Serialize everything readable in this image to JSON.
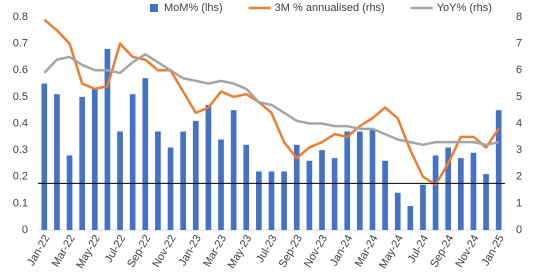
{
  "chart_data": {
    "type": "bar-line",
    "categories": [
      "Jan-22",
      null,
      "Mar-22",
      null,
      "May-22",
      null,
      "Jul-22",
      null,
      "Sep-22",
      null,
      "Nov-22",
      null,
      "Jan-23",
      null,
      "Mar-23",
      null,
      "May-23",
      null,
      "Jul-23",
      null,
      "Sep-23",
      null,
      "Nov-23",
      null,
      "Jan-24",
      null,
      "Mar-24",
      null,
      "May-24",
      null,
      "Jul-24",
      null,
      "Sep-24",
      null,
      "Nov-24",
      null,
      "Jan-25"
    ],
    "series": [
      {
        "name": "MoM% (lhs)",
        "type": "bar",
        "axis": "y",
        "color": "#4472c4",
        "values": [
          0.55,
          0.51,
          0.28,
          0.5,
          0.53,
          0.68,
          0.37,
          0.51,
          0.57,
          0.37,
          0.31,
          0.37,
          0.41,
          0.47,
          0.34,
          0.45,
          0.32,
          0.22,
          0.22,
          0.22,
          0.32,
          0.26,
          0.3,
          0.27,
          0.37,
          0.37,
          0.38,
          0.26,
          0.14,
          0.09,
          0.17,
          0.28,
          0.31,
          0.27,
          0.29,
          0.21,
          0.45
        ]
      },
      {
        "name": "3M % annualised (rhs)",
        "type": "line",
        "axis": "y2",
        "color": "#ed7d31",
        "values": [
          7.9,
          7.5,
          7.0,
          5.5,
          5.3,
          5.4,
          7.0,
          6.5,
          6.4,
          6.0,
          6.0,
          5.2,
          4.4,
          4.6,
          5.2,
          5.0,
          5.1,
          4.8,
          4.4,
          3.3,
          2.7,
          3.1,
          3.3,
          3.6,
          3.5,
          3.9,
          4.2,
          4.6,
          4.2,
          3.0,
          2.0,
          1.7,
          2.5,
          3.5,
          3.5,
          3.1,
          3.8
        ]
      },
      {
        "name": "YoY% (rhs)",
        "type": "line",
        "axis": "y2",
        "color": "#a5a5a5",
        "values": [
          5.9,
          6.4,
          6.5,
          6.2,
          6.0,
          6.0,
          5.9,
          6.3,
          6.6,
          6.3,
          6.0,
          5.7,
          5.6,
          5.5,
          5.6,
          5.5,
          5.3,
          4.8,
          4.7,
          4.4,
          4.1,
          4.0,
          4.0,
          3.9,
          3.9,
          3.8,
          3.8,
          3.6,
          3.4,
          3.3,
          3.2,
          3.3,
          3.3,
          3.3,
          3.3,
          3.2,
          3.3
        ]
      }
    ],
    "hline": 0.175,
    "ylim": [
      0,
      0.8
    ],
    "yticks": [
      0,
      0.1,
      0.2,
      0.3,
      0.4,
      0.5,
      0.6,
      0.7,
      0.8
    ],
    "y2lim": [
      0,
      8
    ],
    "y2ticks": [
      0,
      1,
      2,
      3,
      4,
      5,
      6,
      7,
      8
    ],
    "legend": "top"
  }
}
